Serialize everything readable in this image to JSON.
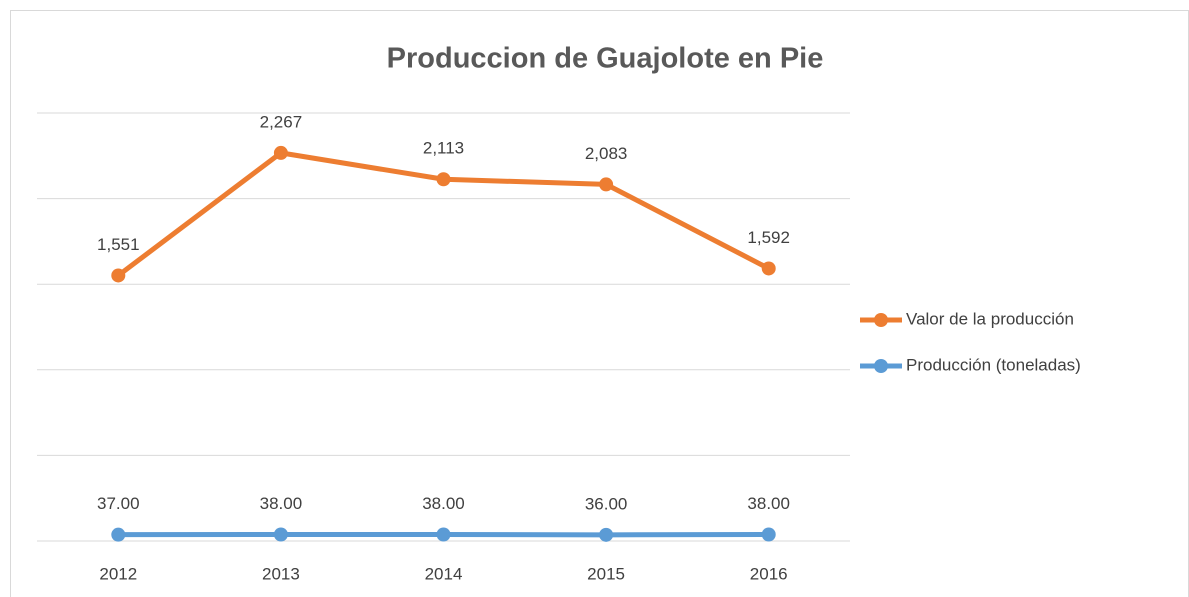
{
  "chart_data": {
    "type": "line",
    "title": "Produccion de Guajolote en Pie",
    "categories": [
      "2012",
      "2013",
      "2014",
      "2015",
      "2016"
    ],
    "series": [
      {
        "name": "Valor de la producción",
        "color": "#ed7d31",
        "values": [
          1551,
          2267,
          2113,
          2083,
          1592
        ],
        "value_labels": [
          "1,551",
          "2,267",
          "2,113",
          "2,083",
          "1,592"
        ]
      },
      {
        "name": "Producción (toneladas)",
        "color": "#5b9bd5",
        "values": [
          37,
          38,
          38,
          36,
          38
        ],
        "value_labels": [
          "37.00",
          "38.00",
          "38.00",
          "36.00",
          "38.00"
        ]
      }
    ],
    "ylim": [
      0,
      2500
    ],
    "yticks": [
      0,
      500,
      1000,
      1500,
      2000,
      2500
    ],
    "grid": true,
    "legend": "right"
  }
}
